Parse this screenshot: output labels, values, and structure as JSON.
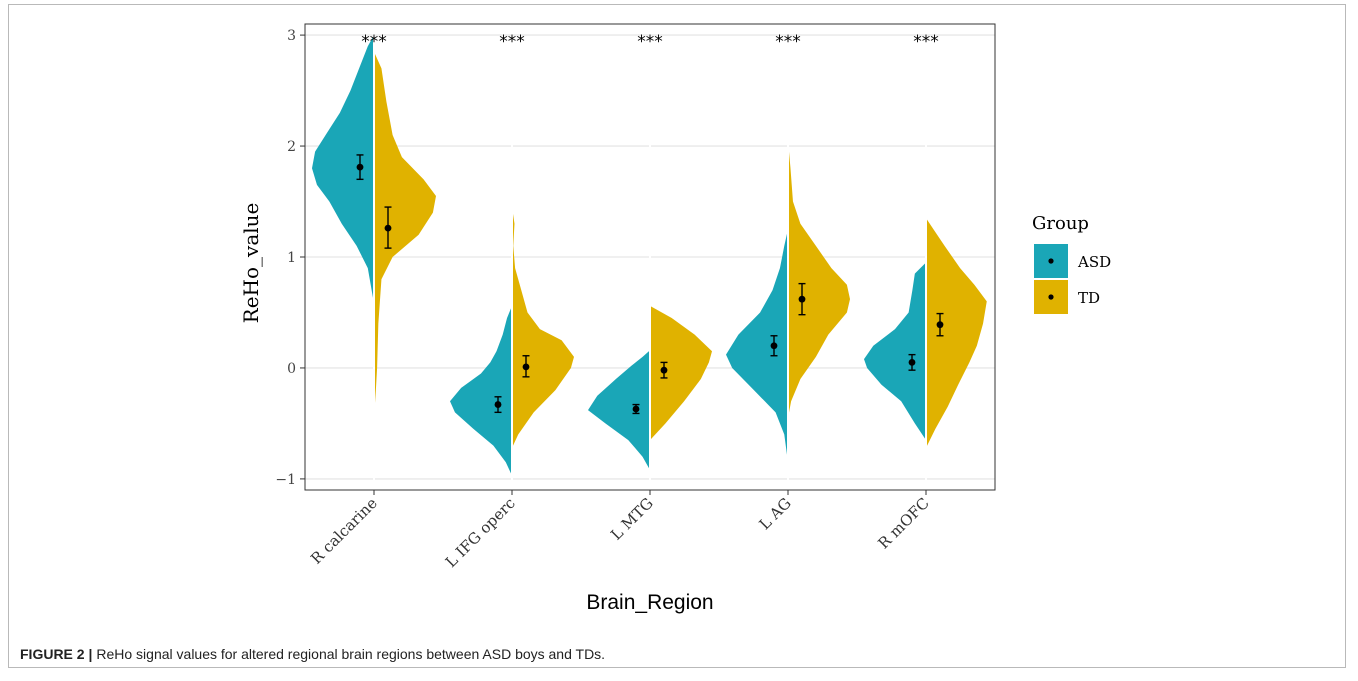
{
  "caption": {
    "label": "FIGURE 2 |",
    "text": "ReHo signal values for altered regional brain regions between ASD boys and TDs."
  },
  "colors": {
    "asd": "#1aa6b7",
    "td": "#e0b200",
    "grid": "#ebebeb",
    "panel_border": "#333333",
    "point": "#000000"
  },
  "chart_data": {
    "type": "split-violin",
    "title": "",
    "xlabel": "Brain_Region",
    "ylabel": "ReHo_value",
    "ylim": [
      -1.1,
      3.1
    ],
    "yticks": [
      -1,
      0,
      1,
      2,
      3
    ],
    "yticklabels": [
      "−1",
      "0",
      "1",
      "2",
      "3"
    ],
    "grid": true,
    "legend": {
      "title": "Group",
      "position": "right",
      "entries": [
        {
          "name": "ASD",
          "color": "#1aa6b7"
        },
        {
          "name": "TD",
          "color": "#e0b200"
        }
      ]
    },
    "categories": [
      "R calcarine",
      "L IFG operc",
      "L MTG",
      "L AG",
      "R mOFC"
    ],
    "significance": [
      "***",
      "***",
      "***",
      "***",
      "***"
    ],
    "series": [
      {
        "name": "ASD",
        "side": "left",
        "mean": [
          1.81,
          -0.33,
          -0.37,
          0.2,
          0.05
        ],
        "ci_low": [
          1.7,
          -0.4,
          -0.41,
          0.11,
          -0.02
        ],
        "ci_high": [
          1.92,
          -0.26,
          -0.33,
          0.29,
          0.12
        ],
        "density": [
          [
            [
              0.58,
              0.0
            ],
            [
              0.9,
              0.1
            ],
            [
              1.1,
              0.28
            ],
            [
              1.3,
              0.52
            ],
            [
              1.5,
              0.72
            ],
            [
              1.65,
              0.92
            ],
            [
              1.8,
              1.0
            ],
            [
              1.95,
              0.95
            ],
            [
              2.1,
              0.78
            ],
            [
              2.3,
              0.55
            ],
            [
              2.5,
              0.38
            ],
            [
              2.7,
              0.24
            ],
            [
              2.9,
              0.1
            ],
            [
              3.0,
              0.0
            ]
          ],
          [
            [
              -0.97,
              0.0
            ],
            [
              -0.85,
              0.1
            ],
            [
              -0.7,
              0.3
            ],
            [
              -0.55,
              0.62
            ],
            [
              -0.4,
              0.92
            ],
            [
              -0.3,
              1.0
            ],
            [
              -0.18,
              0.82
            ],
            [
              -0.05,
              0.5
            ],
            [
              0.05,
              0.35
            ],
            [
              0.15,
              0.25
            ],
            [
              0.3,
              0.15
            ],
            [
              0.45,
              0.08
            ],
            [
              0.56,
              0.0
            ]
          ],
          [
            [
              -0.92,
              0.0
            ],
            [
              -0.8,
              0.12
            ],
            [
              -0.65,
              0.35
            ],
            [
              -0.5,
              0.72
            ],
            [
              -0.38,
              1.0
            ],
            [
              -0.25,
              0.85
            ],
            [
              -0.1,
              0.55
            ],
            [
              0.02,
              0.3
            ],
            [
              0.1,
              0.12
            ],
            [
              0.16,
              0.0
            ]
          ],
          [
            [
              -0.85,
              0.0
            ],
            [
              -0.6,
              0.06
            ],
            [
              -0.4,
              0.2
            ],
            [
              -0.2,
              0.55
            ],
            [
              0.0,
              0.9
            ],
            [
              0.12,
              1.0
            ],
            [
              0.3,
              0.8
            ],
            [
              0.5,
              0.45
            ],
            [
              0.7,
              0.25
            ],
            [
              0.9,
              0.13
            ],
            [
              1.1,
              0.06
            ],
            [
              1.25,
              0.0
            ]
          ],
          [
            [
              -0.65,
              0.0
            ],
            [
              -0.5,
              0.18
            ],
            [
              -0.3,
              0.4
            ],
            [
              -0.15,
              0.72
            ],
            [
              0.0,
              0.95
            ],
            [
              0.08,
              1.0
            ],
            [
              0.2,
              0.85
            ],
            [
              0.35,
              0.5
            ],
            [
              0.5,
              0.28
            ],
            [
              0.7,
              0.22
            ],
            [
              0.85,
              0.18
            ],
            [
              0.95,
              0.0
            ]
          ]
        ]
      },
      {
        "name": "TD",
        "side": "right",
        "mean": [
          1.26,
          0.01,
          -0.02,
          0.62,
          0.39
        ],
        "ci_low": [
          1.08,
          -0.08,
          -0.09,
          0.48,
          0.29
        ],
        "ci_high": [
          1.45,
          0.11,
          0.05,
          0.76,
          0.49
        ],
        "density": [
          [
            [
              -0.45,
              0.0
            ],
            [
              -0.2,
              0.03
            ],
            [
              0.0,
              0.05
            ],
            [
              0.4,
              0.07
            ],
            [
              0.8,
              0.12
            ],
            [
              1.0,
              0.3
            ],
            [
              1.2,
              0.72
            ],
            [
              1.4,
              0.95
            ],
            [
              1.55,
              1.0
            ],
            [
              1.7,
              0.8
            ],
            [
              1.9,
              0.45
            ],
            [
              2.1,
              0.3
            ],
            [
              2.4,
              0.2
            ],
            [
              2.7,
              0.12
            ],
            [
              2.85,
              0.0
            ]
          ],
          [
            [
              -0.72,
              0.0
            ],
            [
              -0.6,
              0.1
            ],
            [
              -0.4,
              0.35
            ],
            [
              -0.2,
              0.7
            ],
            [
              0.0,
              0.95
            ],
            [
              0.1,
              1.0
            ],
            [
              0.25,
              0.8
            ],
            [
              0.35,
              0.45
            ],
            [
              0.5,
              0.25
            ],
            [
              0.7,
              0.15
            ],
            [
              0.9,
              0.05
            ],
            [
              1.1,
              0.02
            ],
            [
              1.3,
              0.04
            ],
            [
              1.45,
              0.0
            ]
          ],
          [
            [
              -0.65,
              0.0
            ],
            [
              -0.5,
              0.25
            ],
            [
              -0.3,
              0.55
            ],
            [
              -0.1,
              0.82
            ],
            [
              0.05,
              0.95
            ],
            [
              0.15,
              1.0
            ],
            [
              0.3,
              0.72
            ],
            [
              0.45,
              0.35
            ],
            [
              0.56,
              0.0
            ]
          ],
          [
            [
              -0.45,
              0.0
            ],
            [
              -0.3,
              0.05
            ],
            [
              -0.1,
              0.2
            ],
            [
              0.1,
              0.45
            ],
            [
              0.3,
              0.65
            ],
            [
              0.5,
              0.95
            ],
            [
              0.62,
              1.0
            ],
            [
              0.75,
              0.95
            ],
            [
              0.9,
              0.7
            ],
            [
              1.1,
              0.45
            ],
            [
              1.3,
              0.2
            ],
            [
              1.5,
              0.08
            ],
            [
              1.8,
              0.04
            ],
            [
              2.05,
              0.0
            ]
          ],
          [
            [
              -0.72,
              0.0
            ],
            [
              -0.55,
              0.15
            ],
            [
              -0.35,
              0.35
            ],
            [
              -0.15,
              0.52
            ],
            [
              0.05,
              0.7
            ],
            [
              0.2,
              0.82
            ],
            [
              0.4,
              0.92
            ],
            [
              0.6,
              0.98
            ],
            [
              0.75,
              0.78
            ],
            [
              0.9,
              0.55
            ],
            [
              1.1,
              0.3
            ],
            [
              1.25,
              0.12
            ],
            [
              1.35,
              0.0
            ]
          ]
        ]
      }
    ]
  }
}
